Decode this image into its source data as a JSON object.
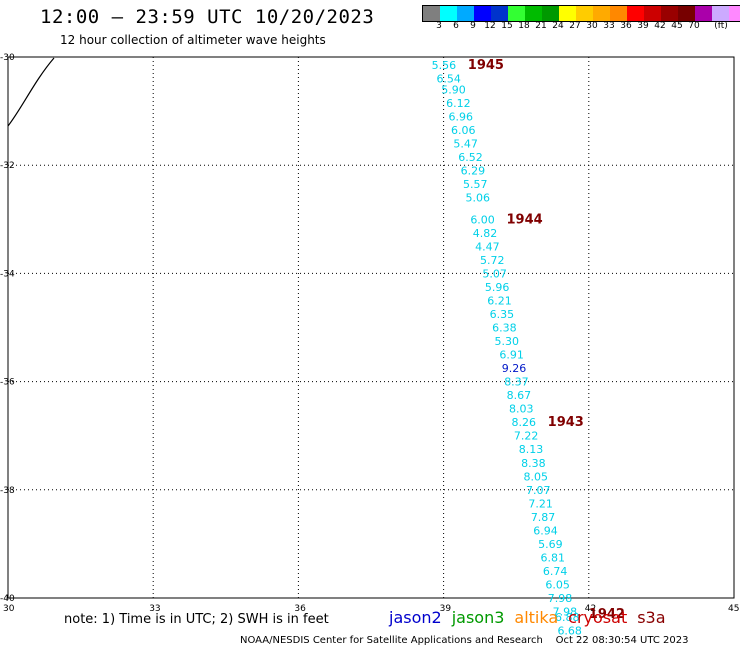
{
  "header": {
    "title": "12:00 – 23:59 UTC 10/20/2023",
    "subtitle": "12 hour collection of altimeter wave heights"
  },
  "legend": {
    "colors": [
      "#7f7f7f",
      "#00ffff",
      "#00aaff",
      "#0000ff",
      "#0033cc",
      "#33ff33",
      "#00bb00",
      "#009900",
      "#ffff00",
      "#ffcc00",
      "#ffaa00",
      "#ff8800",
      "#ff0000",
      "#cc0000",
      "#990000",
      "#770000",
      "#aa00aa",
      "#ccaaff",
      "#ff88ff",
      "#000000"
    ],
    "labels": [
      "3",
      "6",
      "9",
      "12",
      "15",
      "18",
      "21",
      "24",
      "27",
      "30",
      "33",
      "36",
      "39",
      "42",
      "45",
      "70",
      "(ft)"
    ]
  },
  "axes": {
    "lat_labels": [
      "-30",
      "-32",
      "-34",
      "-36",
      "-38",
      "-40"
    ],
    "lon_labels": [
      "30",
      "33",
      "36",
      "39",
      "42",
      "45"
    ]
  },
  "track": [
    {
      "lat": -30.15,
      "lon": 39.0,
      "v": "5.56"
    },
    {
      "lat": -30.4,
      "lon": 39.1,
      "v": "6.54"
    },
    {
      "lat": -30.6,
      "lon": 39.2,
      "v": "5.90"
    },
    {
      "lat": -30.85,
      "lon": 39.3,
      "v": "6.12"
    },
    {
      "lat": -31.1,
      "lon": 39.35,
      "v": "6.96"
    },
    {
      "lat": -31.35,
      "lon": 39.4,
      "v": "6.06"
    },
    {
      "lat": -31.6,
      "lon": 39.45,
      "v": "5.47"
    },
    {
      "lat": -31.85,
      "lon": 39.55,
      "v": "6.52"
    },
    {
      "lat": -32.1,
      "lon": 39.6,
      "v": "6.29"
    },
    {
      "lat": -32.35,
      "lon": 39.65,
      "v": "5.57"
    },
    {
      "lat": -32.6,
      "lon": 39.7,
      "v": "5.06"
    },
    {
      "lat": -33.0,
      "lon": 39.8,
      "v": "6.00"
    },
    {
      "lat": -33.25,
      "lon": 39.85,
      "v": "4.82"
    },
    {
      "lat": -33.5,
      "lon": 39.9,
      "v": "4.47"
    },
    {
      "lat": -33.75,
      "lon": 40.0,
      "v": "5.72"
    },
    {
      "lat": -34.0,
      "lon": 40.05,
      "v": "5.07"
    },
    {
      "lat": -34.25,
      "lon": 40.1,
      "v": "5.96"
    },
    {
      "lat": -34.5,
      "lon": 40.15,
      "v": "6.21"
    },
    {
      "lat": -34.75,
      "lon": 40.2,
      "v": "6.35"
    },
    {
      "lat": -35.0,
      "lon": 40.25,
      "v": "6.38"
    },
    {
      "lat": -35.25,
      "lon": 40.3,
      "v": "5.30"
    },
    {
      "lat": -35.5,
      "lon": 40.4,
      "v": "6.91"
    },
    {
      "lat": -35.75,
      "lon": 40.45,
      "v": "9.26"
    },
    {
      "lat": -36.0,
      "lon": 40.5,
      "v": "8.37"
    },
    {
      "lat": -36.25,
      "lon": 40.55,
      "v": "8.67"
    },
    {
      "lat": -36.5,
      "lon": 40.6,
      "v": "8.03"
    },
    {
      "lat": -36.75,
      "lon": 40.65,
      "v": "8.26"
    },
    {
      "lat": -37.0,
      "lon": 40.7,
      "v": "7.22"
    },
    {
      "lat": -37.25,
      "lon": 40.8,
      "v": "8.13"
    },
    {
      "lat": -37.5,
      "lon": 40.85,
      "v": "8.38"
    },
    {
      "lat": -37.75,
      "lon": 40.9,
      "v": "8.05"
    },
    {
      "lat": -38.0,
      "lon": 40.95,
      "v": "7.07"
    },
    {
      "lat": -38.25,
      "lon": 41.0,
      "v": "7.21"
    },
    {
      "lat": -38.5,
      "lon": 41.05,
      "v": "7.87"
    },
    {
      "lat": -38.75,
      "lon": 41.1,
      "v": "6.94"
    },
    {
      "lat": -39.0,
      "lon": 41.2,
      "v": "5.69"
    },
    {
      "lat": -39.25,
      "lon": 41.25,
      "v": "6.81"
    },
    {
      "lat": -39.5,
      "lon": 41.3,
      "v": "6.74"
    },
    {
      "lat": -39.75,
      "lon": 41.35,
      "v": "6.05"
    },
    {
      "lat": -40.0,
      "lon": 41.4,
      "v": "7.98"
    },
    {
      "lat": -40.25,
      "lon": 41.5,
      "v": "7.98"
    },
    {
      "lat": -40.35,
      "lon": 41.55,
      "v": "6.88"
    },
    {
      "lat": -40.6,
      "lon": 41.6,
      "v": "6.68"
    }
  ],
  "times": [
    {
      "lat": -30.15,
      "lon": 39.5,
      "label": "1945"
    },
    {
      "lat": -33.0,
      "lon": 40.3,
      "label": "1944"
    },
    {
      "lat": -36.75,
      "lon": 41.15,
      "label": "1943"
    },
    {
      "lat": -40.3,
      "lon": 42.0,
      "label": "1942"
    }
  ],
  "note": "note: 1) Time is in UTC; 2) SWH is in feet",
  "satellites": [
    {
      "name": "jason2",
      "color": "#0000cc"
    },
    {
      "name": "jason3",
      "color": "#009900"
    },
    {
      "name": "altika",
      "color": "#ff8800"
    },
    {
      "name": "cryosat",
      "color": "#cc0000"
    },
    {
      "name": "s3a",
      "color": "#880000"
    }
  ],
  "footer": {
    "agency": "NOAA/NESDIS Center for Satellite Applications and Research",
    "timestamp": "Oct 22 08:30:54 UTC 2023"
  }
}
